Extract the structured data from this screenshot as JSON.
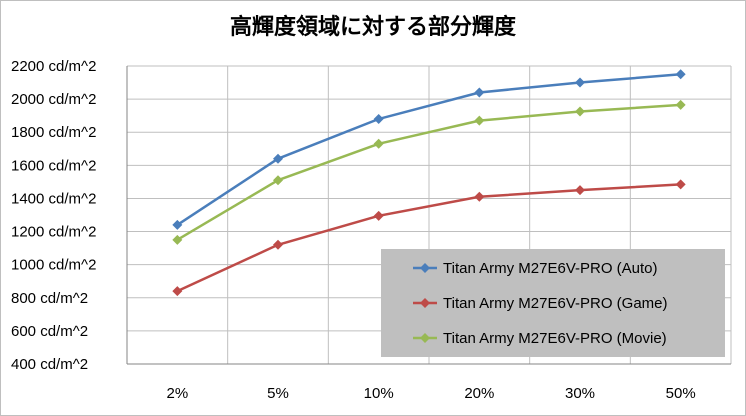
{
  "chart_data": {
    "type": "line",
    "title": "高輝度領域に対する部分輝度",
    "xlabel": "",
    "ylabel": "",
    "categories": [
      "2%",
      "5%",
      "10%",
      "20%",
      "30%",
      "50%"
    ],
    "ylim": [
      400,
      2200
    ],
    "ytick_values": [
      400,
      600,
      800,
      1000,
      1200,
      1400,
      1600,
      1800,
      2000,
      2200
    ],
    "ytick_labels": [
      "400 cd/m^2",
      "600 cd/m^2",
      "800 cd/m^2",
      "1000 cd/m^2",
      "1200 cd/m^2",
      "1400 cd/m^2",
      "1600 cd/m^2",
      "1800 cd/m^2",
      "2000 cd/m^2",
      "2200 cd/m^2"
    ],
    "grid": true,
    "legend_position": "bottom-right",
    "series": [
      {
        "name": "Titan Army M27E6V-PRO (Auto)",
        "color": "#4a7ebb",
        "values": [
          1240,
          1640,
          1880,
          2040,
          2100,
          2150
        ]
      },
      {
        "name": "Titan Army M27E6V-PRO (Game)",
        "color": "#be4b48",
        "values": [
          840,
          1120,
          1295,
          1410,
          1450,
          1485
        ]
      },
      {
        "name": "Titan Army M27E6V-PRO (Movie)",
        "color": "#98b954",
        "values": [
          1150,
          1510,
          1730,
          1870,
          1925,
          1965
        ]
      }
    ]
  }
}
